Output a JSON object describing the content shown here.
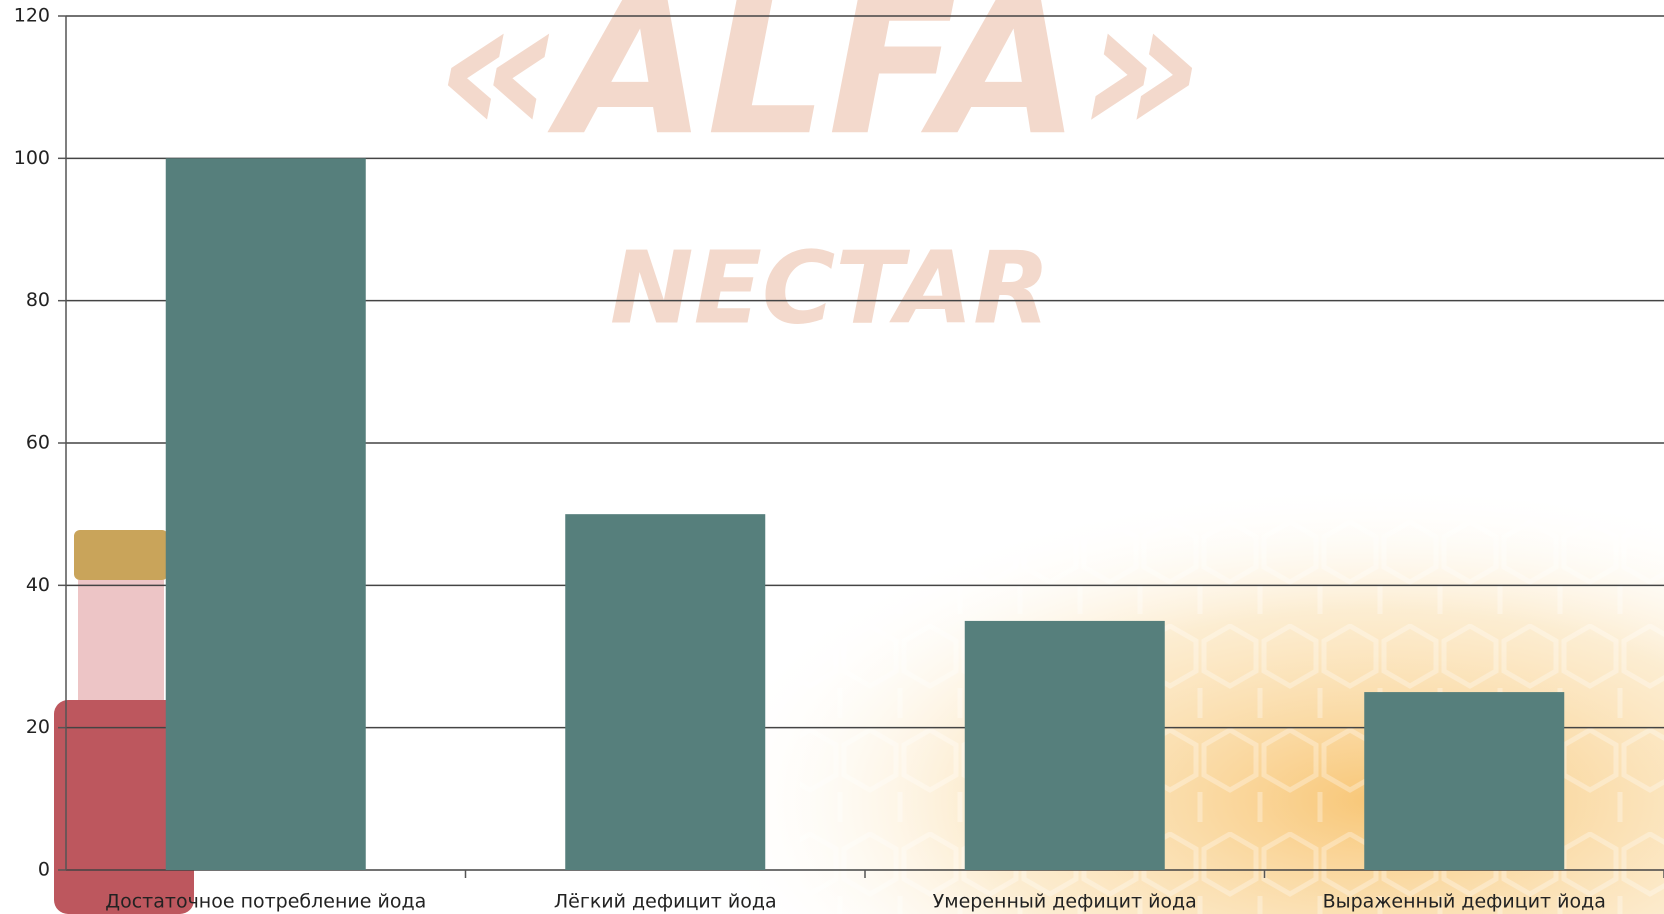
{
  "chart_data": {
    "type": "bar",
    "watermark": [
      "«ALFA»",
      "NECTAR"
    ],
    "categories": [
      "Достаточное потребление йода",
      "Лёгкий дефицит йода",
      "Умеренный дефицит йода",
      "Выраженный дефицит йода"
    ],
    "values": [
      100,
      50,
      35,
      25
    ],
    "color": "#567f7c",
    "ylim": [
      0,
      120
    ],
    "yticks": [
      0,
      20,
      40,
      60,
      80,
      100,
      120
    ],
    "grid": true
  }
}
